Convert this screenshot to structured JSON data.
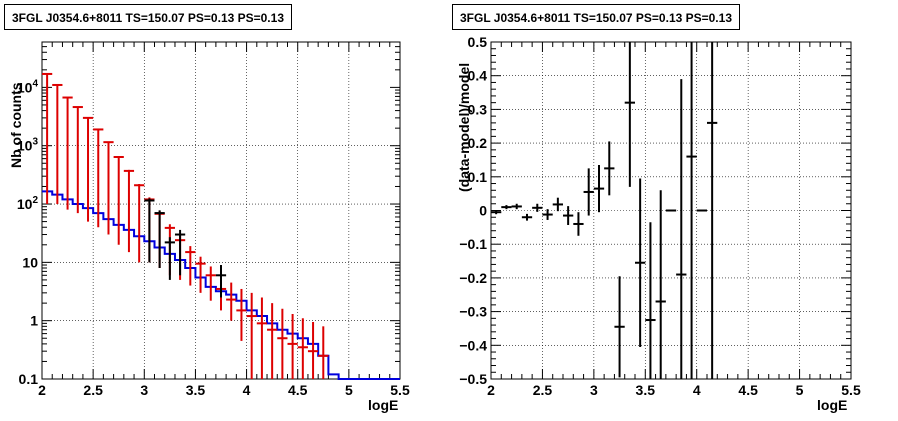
{
  "chart_data": [
    {
      "type": "histogram-errorbars",
      "title": "3FGL J0354.6+8011 TS=150.07 PS=0.13 PS=0.13",
      "xlabel": "logE",
      "ylabel": "Nb of counts",
      "xlim": [
        2,
        5.5
      ],
      "ylim": [
        0.1,
        60000
      ],
      "log_y": true,
      "grid": true,
      "x_ticks": [
        "2",
        "2.5",
        "3",
        "3.5",
        "4",
        "4.5",
        "5",
        "5.5"
      ],
      "y_ticks": [
        "0.1",
        "1",
        "10",
        "10^2",
        "10^3",
        "10^4"
      ],
      "series": [
        {
          "color": "#0000dd",
          "style": "step",
          "x": [
            2.0,
            2.1,
            2.2,
            2.3,
            2.4,
            2.5,
            2.6,
            2.7,
            2.8,
            2.9,
            3.0,
            3.1,
            3.2,
            3.3,
            3.4,
            3.5,
            3.6,
            3.7,
            3.8,
            3.9,
            4.0,
            4.1,
            4.2,
            4.3,
            4.4,
            4.5,
            4.6,
            4.7,
            4.8,
            4.9,
            5.0,
            5.1,
            5.2,
            5.3,
            5.4,
            5.5
          ],
          "values": [
            165,
            145,
            120,
            100,
            85,
            70,
            55,
            44,
            36,
            28,
            23,
            18,
            14,
            11,
            8,
            5.5,
            3.8,
            3.2,
            2.8,
            2.2,
            1.5,
            1.2,
            0.9,
            0.7,
            0.6,
            0.5,
            0.4,
            0.25,
            0.12,
            0.1,
            0.1,
            0.1,
            0.1,
            0.1,
            0.1
          ]
        },
        {
          "color": "#dd0000",
          "style": "errorbar",
          "x": [
            2.05,
            2.15,
            2.25,
            2.35,
            2.45,
            2.55,
            2.65,
            2.75,
            2.85,
            2.95,
            3.05,
            3.15,
            3.25,
            3.35,
            3.45,
            3.55,
            3.65,
            3.75,
            3.85,
            3.95,
            4.05,
            4.15,
            4.25,
            4.35,
            4.45,
            4.55,
            4.65,
            4.75
          ],
          "values": [
            17000,
            11000,
            6700,
            4600,
            3000,
            1900,
            1150,
            640,
            370,
            210,
            120,
            68,
            39,
            24,
            15,
            9.5,
            6.0,
            3.5,
            2.3,
            1.5,
            1.2,
            0.9,
            0.7,
            0.5,
            0.4,
            0.35,
            0.3,
            0.25
          ],
          "err_low": [
            16900,
            10900,
            6620,
            4530,
            2950,
            1860,
            1120,
            620,
            355,
            200,
            110,
            60,
            33,
            19,
            11,
            6.5,
            3.8,
            2.0,
            1.3,
            1.05,
            1.1,
            0.88,
            0.69,
            0.5,
            0.4,
            0.35,
            0.3,
            0.25
          ],
          "err_high": [
            17100,
            11100,
            6780,
            4670,
            3050,
            1940,
            1180,
            660,
            385,
            220,
            130,
            76,
            45,
            29,
            19,
            12.5,
            8.5,
            5.5,
            4.5,
            3.5,
            3.0,
            2.5,
            2.0,
            1.6,
            1.3,
            1.1,
            0.95,
            0.8
          ]
        },
        {
          "color": "#000000",
          "style": "errorbar",
          "x": [
            3.05,
            3.15,
            3.25,
            3.35,
            3.75
          ],
          "values": [
            115,
            70,
            22,
            30,
            6
          ],
          "err_low": [
            105,
            62,
            17,
            24,
            3.5
          ],
          "err_high": [
            125,
            78,
            27,
            36,
            9
          ]
        }
      ]
    },
    {
      "type": "errorbar",
      "title": "3FGL J0354.6+8011 TS=150.07 PS=0.13 PS=0.13",
      "xlabel": "logE",
      "ylabel": "(data-model)/model",
      "xlim": [
        2,
        5.5
      ],
      "ylim": [
        -0.5,
        0.5
      ],
      "grid": true,
      "x_ticks": [
        "2",
        "2.5",
        "3",
        "3.5",
        "4",
        "4.5",
        "5",
        "5.5"
      ],
      "y_ticks": [
        "−0.5",
        "−0.4",
        "−0.3",
        "−0.2",
        "−0.1",
        "0",
        "0.1",
        "0.2",
        "0.3",
        "0.4",
        "0.5"
      ],
      "series": [
        {
          "color": "#000000",
          "x": [
            2.05,
            2.15,
            2.25,
            2.35,
            2.45,
            2.55,
            2.65,
            2.75,
            2.85,
            2.95,
            3.05,
            3.15,
            3.25,
            3.35,
            3.45,
            3.55,
            3.65,
            3.75,
            3.85,
            3.95,
            4.05,
            4.15
          ],
          "values": [
            -0.005,
            0.01,
            0.012,
            -0.02,
            0.008,
            -0.012,
            0.018,
            -0.015,
            -0.04,
            0.055,
            0.065,
            0.125,
            -0.345,
            0.32,
            -0.155,
            -0.325,
            -0.27,
            0.0,
            -0.19,
            0.16,
            0.0,
            0.26
          ],
          "err": [
            0.006,
            0.006,
            0.008,
            0.01,
            0.012,
            0.016,
            0.02,
            0.028,
            0.035,
            0.07,
            0.07,
            0.08,
            0.15,
            0.25,
            0.25,
            0.29,
            0.33,
            0.0,
            0.58,
            0.7,
            0.0,
            0.8
          ]
        }
      ]
    }
  ]
}
